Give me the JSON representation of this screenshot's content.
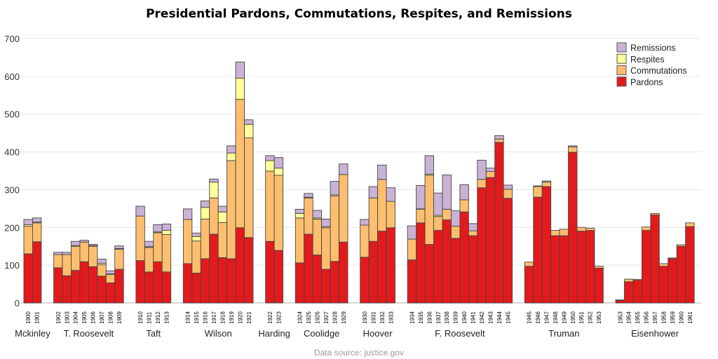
{
  "chart_data": {
    "type": "bar",
    "stacked": true,
    "title": "Presidential Pardons, Commutations, Respites, and Remissions",
    "source": "Data source: justice.gov",
    "ylim": [
      0,
      700
    ],
    "yticks": [
      0,
      100,
      200,
      300,
      400,
      500,
      600,
      700
    ],
    "grid": true,
    "legend_position": "top-right",
    "series": [
      {
        "name": "Pardons",
        "color": "#e31a1c"
      },
      {
        "name": "Commutations",
        "color": "#fdbf6f"
      },
      {
        "name": "Respites",
        "color": "#ffff99"
      },
      {
        "name": "Remissions",
        "color": "#cab2d6"
      }
    ],
    "legend_order": [
      "Remissions",
      "Respites",
      "Commutations",
      "Pardons"
    ],
    "groups": [
      {
        "president": "Mckinley",
        "years": [
          {
            "year": "1900",
            "values": [
              130,
              73,
              4,
              14
            ]
          },
          {
            "year": "1901",
            "values": [
              162,
              50,
              2,
              11
            ]
          }
        ]
      },
      {
        "president": "T. Roosevelt",
        "years": [
          {
            "year": "1902",
            "values": [
              93,
              35,
              0,
              6
            ]
          },
          {
            "year": "1903",
            "values": [
              72,
              56,
              0,
              6
            ]
          },
          {
            "year": "1904",
            "values": [
              86,
              64,
              2,
              11
            ]
          },
          {
            "year": "1905",
            "values": [
              109,
              52,
              0,
              5
            ]
          },
          {
            "year": "1906",
            "values": [
              96,
              54,
              2,
              3
            ]
          },
          {
            "year": "1907",
            "values": [
              71,
              30,
              4,
              11
            ]
          },
          {
            "year": "1908",
            "values": [
              53,
              22,
              2,
              8
            ]
          },
          {
            "year": "1909",
            "values": [
              89,
              53,
              2,
              7
            ]
          }
        ]
      },
      {
        "president": "Taft",
        "years": [
          {
            "year": "1910",
            "values": [
              112,
              118,
              0,
              26
            ]
          },
          {
            "year": "1911",
            "values": [
              82,
              65,
              2,
              14
            ]
          },
          {
            "year": "1912",
            "values": [
              109,
              77,
              2,
              19
            ]
          },
          {
            "year": "1913",
            "values": [
              82,
              99,
              11,
              17
            ]
          }
        ]
      },
      {
        "president": "Wilson",
        "years": [
          {
            "year": "1914",
            "values": [
              104,
              117,
              0,
              28
            ]
          },
          {
            "year": "1915",
            "values": [
              79,
              85,
              12,
              9
            ]
          },
          {
            "year": "1916",
            "values": [
              117,
              105,
              31,
              17
            ]
          },
          {
            "year": "1917",
            "values": [
              182,
              96,
              42,
              8
            ]
          },
          {
            "year": "1918",
            "values": [
              120,
              93,
              28,
              15
            ]
          },
          {
            "year": "1919",
            "values": [
              117,
              260,
              20,
              19
            ]
          },
          {
            "year": "1920",
            "values": [
              199,
              340,
              56,
              43
            ]
          },
          {
            "year": "1921",
            "values": [
              173,
              264,
              36,
              12
            ]
          }
        ]
      },
      {
        "president": "Harding",
        "years": [
          {
            "year": "1922",
            "values": [
              163,
              186,
              28,
              13
            ]
          },
          {
            "year": "1923",
            "values": [
              139,
              199,
              19,
              28
            ]
          }
        ]
      },
      {
        "president": "Coolidge",
        "years": [
          {
            "year": "1924",
            "values": [
              106,
              119,
              12,
              11
            ]
          },
          {
            "year": "1925",
            "values": [
              182,
              96,
              2,
              10
            ]
          },
          {
            "year": "1926",
            "values": [
              127,
              95,
              3,
              20
            ]
          },
          {
            "year": "1927",
            "values": [
              89,
              110,
              3,
              20
            ]
          },
          {
            "year": "1928",
            "values": [
              110,
              173,
              3,
              36
            ]
          },
          {
            "year": "1929",
            "values": [
              161,
              179,
              0,
              28
            ]
          }
        ]
      },
      {
        "president": "Hoover",
        "years": [
          {
            "year": "1930",
            "values": [
              121,
              85,
              0,
              15
            ]
          },
          {
            "year": "1931",
            "values": [
              163,
              115,
              0,
              30
            ]
          },
          {
            "year": "1932",
            "values": [
              190,
              137,
              0,
              38
            ]
          },
          {
            "year": "1933",
            "values": [
              199,
              70,
              0,
              36
            ]
          }
        ]
      },
      {
        "president": "F. Roosevelt",
        "years": [
          {
            "year": "1934",
            "values": [
              114,
              55,
              0,
              35
            ]
          },
          {
            "year": "1935",
            "values": [
              212,
              36,
              1,
              62
            ]
          },
          {
            "year": "1936",
            "values": [
              155,
              183,
              3,
              49
            ]
          },
          {
            "year": "1937",
            "values": [
              192,
              37,
              3,
              59
            ]
          },
          {
            "year": "1938",
            "values": [
              220,
              28,
              0,
              91
            ]
          },
          {
            "year": "1939",
            "values": [
              171,
              32,
              0,
              41
            ]
          },
          {
            "year": "1940",
            "values": [
              241,
              32,
              0,
              40
            ]
          },
          {
            "year": "1941",
            "values": [
              178,
              13,
              0,
              19
            ]
          },
          {
            "year": "1942",
            "values": [
              305,
              22,
              0,
              51
            ]
          },
          {
            "year": "1943",
            "values": [
              332,
              16,
              0,
              9
            ]
          },
          {
            "year": "1944",
            "values": [
              425,
              9,
              0,
              9
            ]
          },
          {
            "year": "1945",
            "values": [
              277,
              24,
              0,
              11
            ]
          }
        ]
      },
      {
        "president": "Truman",
        "years": [
          {
            "year": "1945",
            "values": [
              97,
              11,
              0,
              0
            ]
          },
          {
            "year": "1946",
            "values": [
              280,
              28,
              0,
              2
            ]
          },
          {
            "year": "1947",
            "values": [
              308,
              12,
              0,
              3
            ]
          },
          {
            "year": "1948",
            "values": [
              178,
              14,
              0,
              0
            ]
          },
          {
            "year": "1949",
            "values": [
              178,
              17,
              0,
              0
            ]
          },
          {
            "year": "1950",
            "values": [
              399,
              14,
              0,
              3
            ]
          },
          {
            "year": "1951",
            "values": [
              190,
              10,
              0,
              0
            ]
          },
          {
            "year": "1952",
            "values": [
              192,
              6,
              0,
              0
            ]
          },
          {
            "year": "1953",
            "values": [
              92,
              5,
              0,
              0
            ]
          }
        ]
      },
      {
        "president": "Eisenhower",
        "years": [
          {
            "year": "1953",
            "values": [
              7,
              1,
              0,
              0
            ]
          },
          {
            "year": "1954",
            "values": [
              56,
              7,
              0,
              0
            ]
          },
          {
            "year": "1955",
            "values": [
              60,
              2,
              0,
              0
            ]
          },
          {
            "year": "1956",
            "values": [
              192,
              9,
              0,
              0
            ]
          },
          {
            "year": "1957",
            "values": [
              233,
              4,
              0,
              0
            ]
          },
          {
            "year": "1958",
            "values": [
              97,
              7,
              0,
              0
            ]
          },
          {
            "year": "1959",
            "values": [
              117,
              2,
              0,
              0
            ]
          },
          {
            "year": "1960",
            "values": [
              150,
              4,
              0,
              0
            ]
          },
          {
            "year": "1961",
            "values": [
              202,
              10,
              0,
              0
            ]
          }
        ]
      }
    ]
  }
}
